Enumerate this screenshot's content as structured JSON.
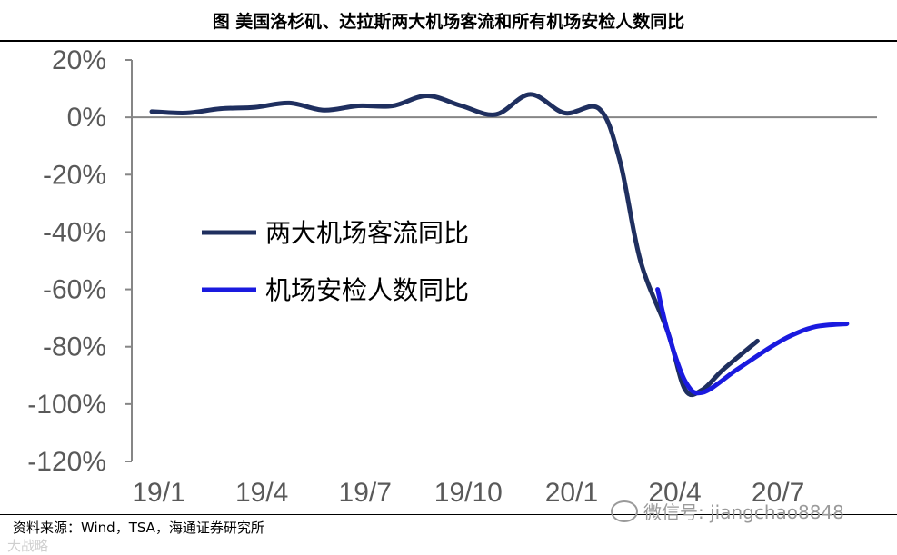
{
  "caption": "图  美国洛杉矶、达拉斯两大机场客流和所有机场安检人数同比",
  "source": "资料来源：Wind，TSA，海通证券研究所",
  "watermark": "微信号: jiangchao8848",
  "watermark_corner": "大战略",
  "chart_data": {
    "type": "line",
    "title": "图  美国洛杉矶、达拉斯两大机场客流和所有机场安检人数同比",
    "xlabel": "",
    "ylabel": "",
    "x_ticks": [
      "19/1",
      "19/4",
      "19/7",
      "19/10",
      "20/1",
      "20/4",
      "20/7"
    ],
    "y_ticks": [
      "20%",
      "0%",
      "-20%",
      "-40%",
      "-60%",
      "-80%",
      "-100%",
      "-120%"
    ],
    "ylim": [
      -120,
      20
    ],
    "grid": false,
    "legend_position": "middle-left",
    "series": [
      {
        "name": "两大机场客流同比",
        "color": "#1f2f5f",
        "points": [
          [
            0.0,
            2
          ],
          [
            1.0,
            1.5
          ],
          [
            2.0,
            3
          ],
          [
            3.0,
            3.5
          ],
          [
            4.0,
            5
          ],
          [
            5.0,
            2.5
          ],
          [
            6.0,
            4
          ],
          [
            7.0,
            4
          ],
          [
            8.0,
            7.5
          ],
          [
            9.0,
            4
          ],
          [
            10.0,
            1
          ],
          [
            11.0,
            8
          ],
          [
            12.0,
            1.5
          ],
          [
            13.0,
            3
          ],
          [
            13.6,
            -15
          ],
          [
            14.2,
            -50
          ],
          [
            15.0,
            -75
          ],
          [
            15.5,
            -95
          ],
          [
            16.0,
            -95
          ],
          [
            16.6,
            -88
          ],
          [
            17.6,
            -78
          ]
        ]
      },
      {
        "name": "机场安检人数同比",
        "color": "#1a1adf",
        "points": [
          [
            14.7,
            -60
          ],
          [
            15.0,
            -75
          ],
          [
            15.5,
            -92
          ],
          [
            16.0,
            -96
          ],
          [
            17.0,
            -88
          ],
          [
            18.0,
            -80
          ],
          [
            18.6,
            -76
          ],
          [
            19.3,
            -73
          ],
          [
            20.2,
            -72
          ]
        ]
      }
    ]
  }
}
